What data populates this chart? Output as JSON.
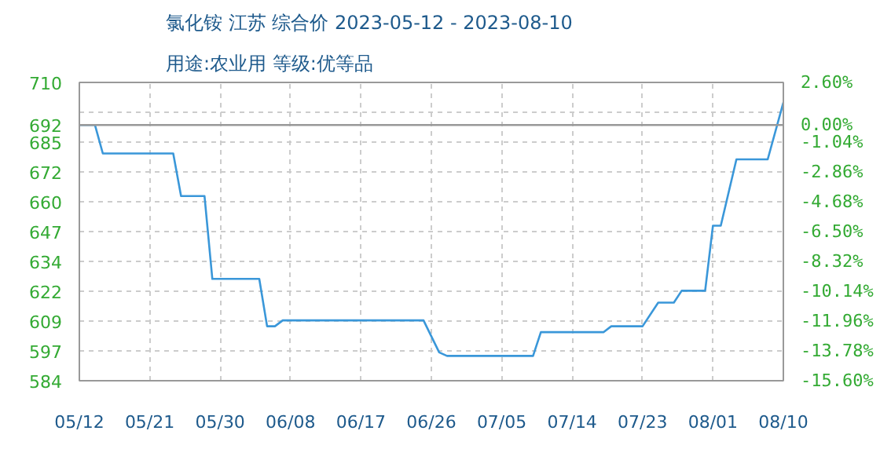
{
  "chart_data": {
    "type": "line",
    "title": "氯化铵 江苏 综合价 2023-05-12 - 2023-08-10",
    "subtitle": "用途:农业用 等级:优等品",
    "x": [
      "2023-05-12",
      "2023-05-14",
      "2023-05-15",
      "2023-05-24",
      "2023-05-25",
      "2023-05-28",
      "2023-05-29",
      "2023-06-04",
      "2023-06-05",
      "2023-06-06",
      "2023-06-07",
      "2023-06-25",
      "2023-06-27",
      "2023-06-28",
      "2023-07-09",
      "2023-07-10",
      "2023-07-18",
      "2023-07-19",
      "2023-07-23",
      "2023-07-25",
      "2023-07-27",
      "2023-07-28",
      "2023-07-31",
      "2023-08-01",
      "2023-08-02",
      "2023-08-04",
      "2023-08-08",
      "2023-08-10"
    ],
    "series": [
      {
        "color": "#3a97d9",
        "values": [
          692,
          692,
          680,
          680,
          662,
          662,
          627,
          627,
          607,
          607,
          609.5,
          609.5,
          596,
          594.5,
          594.5,
          604.5,
          604.5,
          607,
          607,
          617,
          617,
          622,
          622,
          649.5,
          649.5,
          677.5,
          677.5,
          701.5
        ]
      }
    ],
    "xlim": [
      "2023-05-12",
      "2023-08-10"
    ],
    "xticks": [
      {
        "value": "2023-05-12",
        "label": "05/12"
      },
      {
        "value": "2023-05-21",
        "label": "05/21"
      },
      {
        "value": "2023-05-30",
        "label": "05/30"
      },
      {
        "value": "2023-06-08",
        "label": "06/08"
      },
      {
        "value": "2023-06-17",
        "label": "06/17"
      },
      {
        "value": "2023-06-26",
        "label": "06/26"
      },
      {
        "value": "2023-07-05",
        "label": "07/05"
      },
      {
        "value": "2023-07-14",
        "label": "07/14"
      },
      {
        "value": "2023-07-23",
        "label": "07/23"
      },
      {
        "value": "2023-08-01",
        "label": "08/01"
      },
      {
        "value": "2023-08-10",
        "label": "08/10"
      }
    ],
    "ylim": [
      584,
      710
    ],
    "yticks": [
      584,
      {
        "value": 596.6,
        "label": "597"
      },
      {
        "value": 609.2,
        "label": "609"
      },
      {
        "value": 621.8,
        "label": "622"
      },
      {
        "value": 634.4,
        "label": "634"
      },
      647,
      {
        "value": 659.6,
        "label": "660"
      },
      {
        "value": 672.2,
        "label": "672"
      },
      {
        "value": 684.8,
        "label": "685"
      },
      692,
      {
        "value": 697.4,
        "label": null
      },
      710
    ],
    "y2lim": [
      -15.6,
      2.6
    ],
    "y2ticks": [
      {
        "value": -15.6,
        "label": "-15.60%"
      },
      {
        "value": -13.78,
        "label": "-13.78%"
      },
      {
        "value": -11.96,
        "label": "-11.96%"
      },
      {
        "value": -10.14,
        "label": "-10.14%"
      },
      {
        "value": -8.32,
        "label": "-8.32%"
      },
      {
        "value": -6.5,
        "label": "-6.50%"
      },
      {
        "value": -4.68,
        "label": "-4.68%"
      },
      {
        "value": -2.86,
        "label": "-2.86%"
      },
      {
        "value": -1.04,
        "label": "-1.04%"
      },
      {
        "value": 0,
        "label": "0.00%"
      },
      {
        "value": 2.6,
        "label": "2.60%"
      }
    ],
    "ref_lines": [
      {
        "axis": "y",
        "value": 692,
        "color": "#999999"
      }
    ],
    "grid": true,
    "marker": "none",
    "line_style": "solid"
  }
}
